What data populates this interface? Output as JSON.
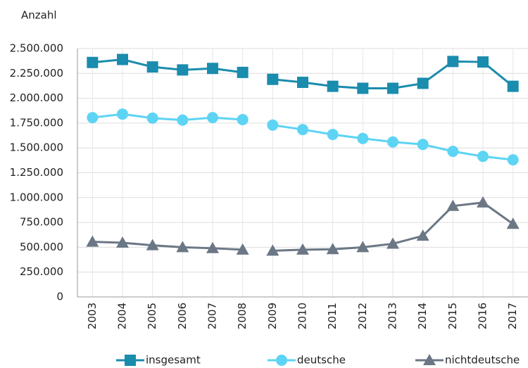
{
  "chart_data": {
    "type": "line",
    "title": "Anzahl",
    "categories": [
      "2003",
      "2004",
      "2005",
      "2006",
      "2007",
      "2008",
      "2009",
      "2010",
      "2011",
      "2012",
      "2013",
      "2014",
      "2015",
      "2016",
      "2017"
    ],
    "break_before": "2009",
    "series": [
      {
        "name": "insgesamt",
        "color": "#1a8cad",
        "marker": "square",
        "values": [
          2360000,
          2390000,
          2315000,
          2285000,
          2300000,
          2260000,
          2190000,
          2160000,
          2120000,
          2100000,
          2100000,
          2150000,
          2370000,
          2365000,
          2120000
        ]
      },
      {
        "name": "deutsche",
        "color": "#5dd4f4",
        "marker": "circle",
        "values": [
          1805000,
          1840000,
          1800000,
          1780000,
          1805000,
          1785000,
          1730000,
          1685000,
          1635000,
          1595000,
          1560000,
          1535000,
          1465000,
          1415000,
          1380000
        ]
      },
      {
        "name": "nichtdeutsche",
        "color": "#6b7785",
        "marker": "triangle",
        "values": [
          555000,
          545000,
          520000,
          500000,
          490000,
          475000,
          465000,
          475000,
          480000,
          500000,
          535000,
          615000,
          915000,
          950000,
          735000
        ]
      }
    ],
    "ylim": [
      0,
      2500000
    ],
    "yticks": [
      0,
      {
        "value": 250000,
        "label": "250.000"
      },
      {
        "value": 500000,
        "label": "500.000"
      },
      {
        "value": 750000,
        "label": "750.000"
      },
      {
        "value": 1000000,
        "label": "1.000.000"
      },
      {
        "value": 1250000,
        "label": "1.250.000"
      },
      {
        "value": 1500000,
        "label": "1.500.000"
      },
      {
        "value": 1750000,
        "label": "1.750.000"
      },
      {
        "value": 2000000,
        "label": "2.000.000"
      },
      {
        "value": 2250000,
        "label": "2.250.000"
      },
      {
        "value": 2500000,
        "label": "2.500.000"
      }
    ],
    "grid": true,
    "legend": "bottom"
  }
}
